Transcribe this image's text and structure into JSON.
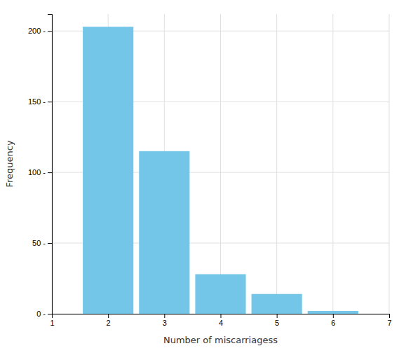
{
  "chart_data": {
    "type": "bar",
    "x": [
      2,
      3,
      4,
      5,
      6
    ],
    "values": [
      203,
      115,
      28,
      14,
      2
    ],
    "color": "#74C6E8",
    "xlabel": "Number of miscarriagess",
    "ylabel": "Frequency",
    "xlim": [
      1,
      7
    ],
    "ylim": [
      0,
      212
    ],
    "xticks": [
      1,
      2,
      3,
      4,
      5,
      6,
      7
    ],
    "yticks": [
      {
        "value": 0,
        "label": "0 -"
      },
      {
        "value": 50,
        "label": "50 -"
      },
      {
        "value": 100,
        "label": "100 -"
      },
      {
        "value": 150,
        "label": "150 -"
      },
      {
        "value": 200,
        "label": "200 -"
      }
    ],
    "grid": true
  }
}
